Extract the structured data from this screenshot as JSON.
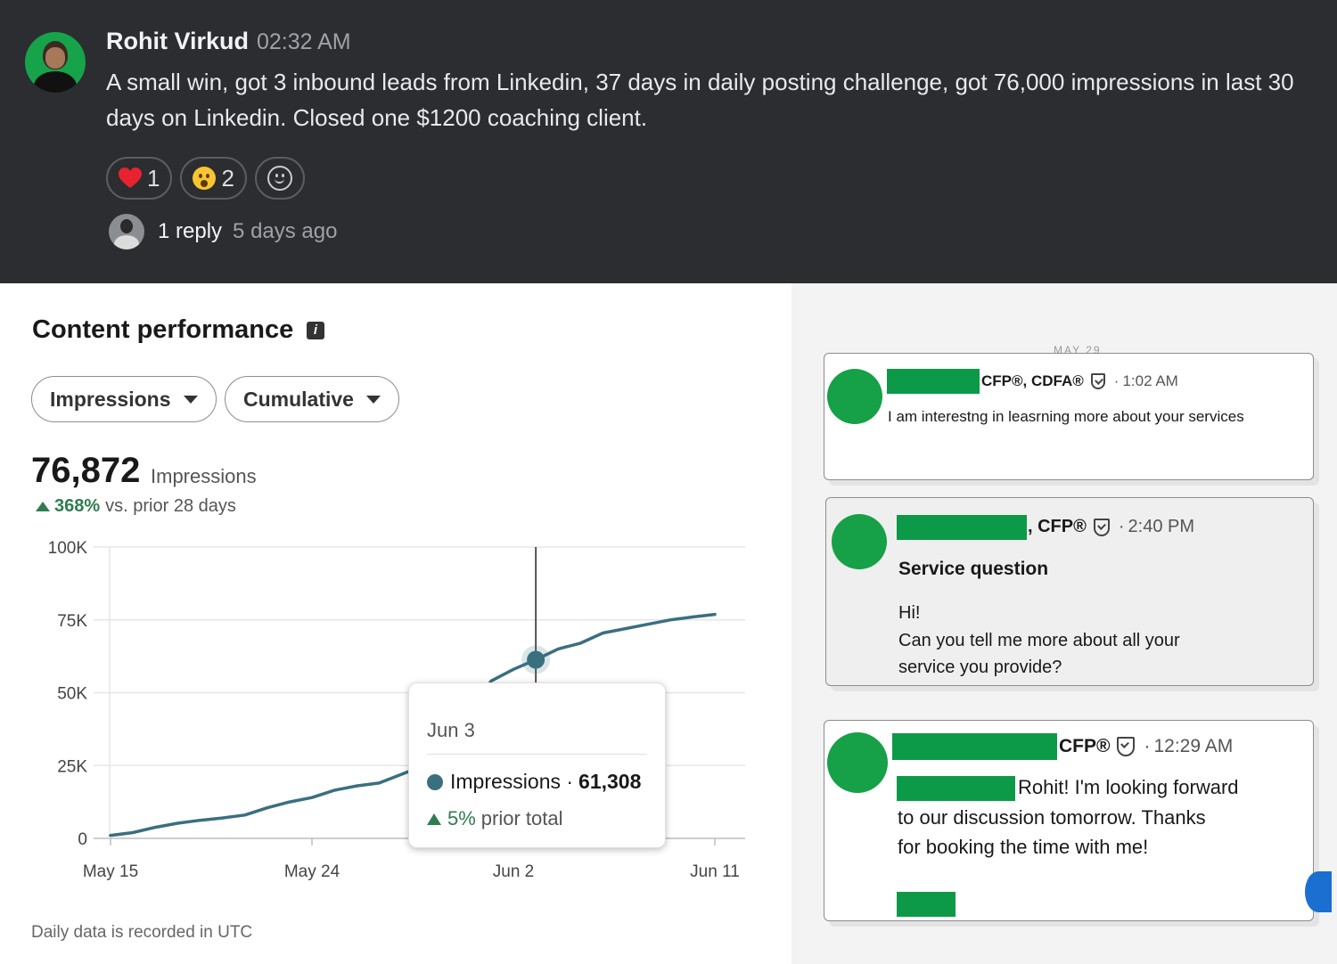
{
  "message": {
    "author": "Rohit Virkud",
    "time": "02:32 AM",
    "text": "A small win, got 3 inbound leads from Linkedin, 37 days in daily posting challenge, got 76,000 impressions in last 30 days on Linkedin. Closed one $1200 coaching client.",
    "reactions": [
      {
        "emoji": "heart-emoji",
        "count": "1"
      },
      {
        "emoji": "hushed-face-emoji",
        "count": "2"
      }
    ],
    "add_reaction_icon": "add-emoji-icon",
    "reply_count": "1 reply",
    "reply_ago": "5 days ago"
  },
  "performance": {
    "title": "Content performance",
    "info_icon": "info-icon",
    "metric_dropdown": "Impressions",
    "mode_dropdown": "Cumulative",
    "total_value": "76,872",
    "total_unit": "Impressions",
    "delta_pct": "368%",
    "delta_text": "vs. prior 28 days",
    "footnote": "Daily data is recorded in UTC",
    "tooltip": {
      "date": "Jun 3",
      "series": "Impressions",
      "value": "61,308",
      "delta_pct": "5%",
      "delta_text": "prior total"
    }
  },
  "chart_data": {
    "type": "line",
    "title": "",
    "xlabel": "",
    "ylabel": "",
    "x_tick_labels": [
      "May 15",
      "May 24",
      "Jun 2",
      "Jun 11"
    ],
    "y_tick_labels": [
      "0",
      "25K",
      "50K",
      "75K",
      "100K"
    ],
    "ylim": [
      0,
      100000
    ],
    "grid": true,
    "color": "#3a6f80",
    "x_day_start": "May 15",
    "series": [
      {
        "name": "Impressions",
        "x": [
          "May 15",
          "May 16",
          "May 17",
          "May 18",
          "May 19",
          "May 20",
          "May 21",
          "May 22",
          "May 23",
          "May 24",
          "May 25",
          "May 26",
          "May 27",
          "May 28",
          "May 29",
          "May 30",
          "May 31",
          "Jun 1",
          "Jun 2",
          "Jun 3",
          "Jun 4",
          "Jun 5",
          "Jun 6",
          "Jun 7",
          "Jun 8",
          "Jun 9",
          "Jun 10",
          "Jun 11"
        ],
        "values": [
          1000,
          2000,
          3800,
          5200,
          6200,
          7000,
          8000,
          10500,
          12500,
          14000,
          16500,
          18000,
          19000,
          22000,
          25000,
          29000,
          42000,
          54000,
          58000,
          61308,
          65000,
          67000,
          70500,
          72000,
          73500,
          75000,
          76000,
          76872
        ]
      }
    ],
    "highlight": {
      "x": "Jun 3",
      "value": 61308
    }
  },
  "dm_cards": [
    {
      "credential": "CFP®, CDFA®",
      "time": "1:02 AM",
      "body": "I am interestng in leasrning more about your services"
    },
    {
      "credential": ", CFP®",
      "time": "2:40 PM",
      "subject": "Service question",
      "greeting": "Hi!",
      "body": "Can you tell me more about all your service you provide?"
    },
    {
      "credential": "CFP®",
      "time": "12:29 AM",
      "body_line1": "Rohit! I'm looking forward",
      "body_line2": "to our discussion tomorrow. Thanks",
      "body_line3": "for booking the time with me!"
    }
  ],
  "peek_date": "MAY 29"
}
